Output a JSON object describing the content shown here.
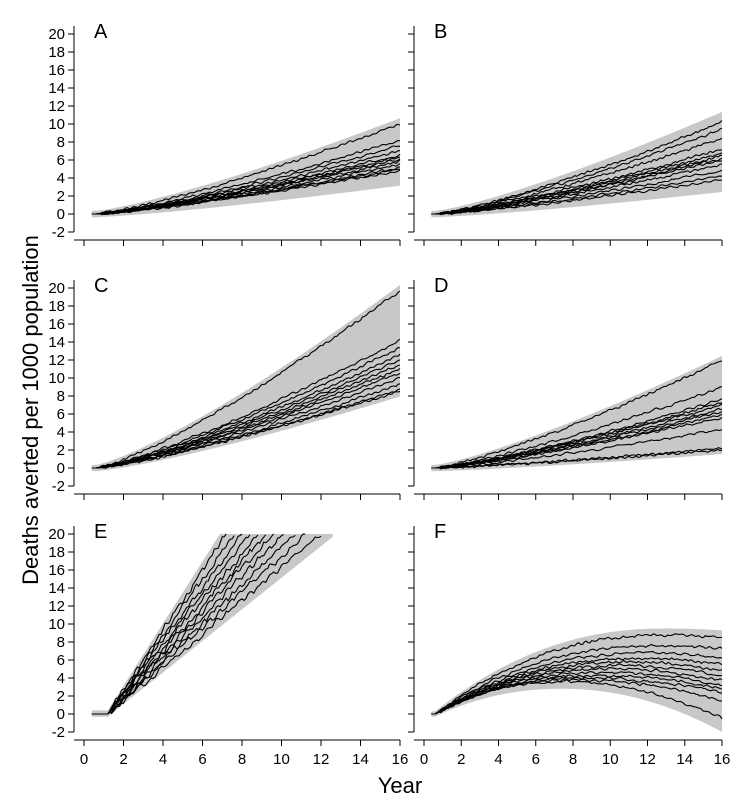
{
  "figure": {
    "ylabel": "Deaths averted per 1000 population",
    "xlabel": "Year"
  },
  "colors": {
    "band": "#c8c8c8",
    "line": "#000000",
    "axis": "#000000"
  },
  "chart_data": [
    {
      "panel": "A",
      "type": "line",
      "xlim": [
        0,
        16
      ],
      "ylim": [
        -2,
        20
      ],
      "xticks": [
        0,
        2,
        4,
        6,
        8,
        10,
        12,
        14,
        16
      ],
      "yticks": [
        -2,
        0,
        2,
        4,
        6,
        8,
        10,
        12,
        14,
        16,
        18,
        20
      ],
      "show_xtick_labels": false,
      "show_ytick_labels": true,
      "endpoints": [
        10,
        8.2,
        7.6,
        7.0,
        6.6,
        6.3,
        6.1,
        5.9,
        5.5,
        5.2,
        5.0,
        4.8
      ],
      "band": {
        "upper_end": 10.3,
        "lower_end": 3.5
      },
      "series_desc": "cumulative deaths averted vs year, multiple simulation runs"
    },
    {
      "panel": "B",
      "type": "line",
      "xlim": [
        0,
        16
      ],
      "ylim": [
        -2,
        20
      ],
      "xticks": [
        0,
        2,
        4,
        6,
        8,
        10,
        12,
        14,
        16
      ],
      "yticks": [
        -2,
        0,
        2,
        4,
        6,
        8,
        10,
        12,
        14,
        16,
        18,
        20
      ],
      "show_xtick_labels": false,
      "show_ytick_labels": false,
      "endpoints": [
        10.2,
        9.4,
        8.4,
        7.2,
        6.8,
        6.5,
        6.2,
        6.0,
        5.5,
        4.8,
        4.2,
        3.8
      ],
      "band": {
        "upper_end": 11.0,
        "lower_end": 2.8
      }
    },
    {
      "panel": "C",
      "type": "line",
      "xlim": [
        0,
        16
      ],
      "ylim": [
        -2,
        20
      ],
      "xticks": [
        0,
        2,
        4,
        6,
        8,
        10,
        12,
        14,
        16
      ],
      "yticks": [
        -2,
        0,
        2,
        4,
        6,
        8,
        10,
        12,
        14,
        16,
        18,
        20
      ],
      "show_xtick_labels": false,
      "show_ytick_labels": true,
      "endpoints": [
        19.7,
        14.2,
        13.4,
        12.6,
        12.0,
        11.5,
        11.0,
        10.6,
        10.0,
        9.3,
        8.8,
        8.6
      ],
      "band": {
        "upper_end": 20.0,
        "lower_end": 8.3
      }
    },
    {
      "panel": "D",
      "type": "line",
      "xlim": [
        0,
        16
      ],
      "ylim": [
        -2,
        20
      ],
      "xticks": [
        0,
        2,
        4,
        6,
        8,
        10,
        12,
        14,
        16
      ],
      "yticks": [
        -2,
        0,
        2,
        4,
        6,
        8,
        10,
        12,
        14,
        16,
        18,
        20
      ],
      "show_xtick_labels": false,
      "show_ytick_labels": false,
      "endpoints": [
        11.9,
        9.0,
        7.6,
        7.3,
        7.0,
        6.6,
        6.3,
        5.9,
        5.6,
        4.3,
        2.2,
        2.0
      ],
      "band": {
        "upper_end": 12.1,
        "lower_end": 1.9
      }
    },
    {
      "panel": "E",
      "type": "line",
      "xlim": [
        0,
        16
      ],
      "ylim": [
        -2,
        20
      ],
      "xticks": [
        0,
        2,
        4,
        6,
        8,
        10,
        12,
        14,
        16
      ],
      "xtick_labels": [
        "0",
        "2",
        "4",
        "6",
        "8",
        "10",
        "12",
        "14",
        "16"
      ],
      "yticks": [
        -2,
        0,
        2,
        4,
        6,
        8,
        10,
        12,
        14,
        16,
        18,
        20
      ],
      "show_xtick_labels": true,
      "show_ytick_labels": true,
      "cap_years": [
        7.2,
        7.6,
        8.0,
        8.4,
        8.8,
        9.2,
        9.6,
        10.1,
        10.7,
        11.2,
        12.0
      ],
      "cap_value": 20,
      "band": {
        "upper_cap_year": 7.0,
        "lower_cap_year": 12.6
      }
    },
    {
      "panel": "F",
      "type": "line",
      "xlim": [
        0,
        16
      ],
      "ylim": [
        -2,
        20
      ],
      "xticks": [
        0,
        2,
        4,
        6,
        8,
        10,
        12,
        14,
        16
      ],
      "xtick_labels": [
        "0",
        "2",
        "4",
        "6",
        "8",
        "10",
        "12",
        "14",
        "16"
      ],
      "yticks": [
        -2,
        0,
        2,
        4,
        6,
        8,
        10,
        12,
        14,
        16,
        18,
        20
      ],
      "show_xtick_labels": true,
      "show_ytick_labels": false,
      "peaks": [
        [
          13,
          8.8
        ],
        [
          12.5,
          7.6
        ],
        [
          12,
          6.8
        ],
        [
          11.5,
          6.2
        ],
        [
          11,
          5.8
        ],
        [
          10.5,
          5.4
        ],
        [
          10,
          5.0
        ],
        [
          9.5,
          4.6
        ],
        [
          9,
          4.3
        ],
        [
          8.5,
          4.0
        ],
        [
          8,
          3.8
        ],
        [
          7.5,
          3.6
        ]
      ],
      "endpoints": [
        8.5,
        7.3,
        6.2,
        5.5,
        4.8,
        4.2,
        3.7,
        3.2,
        2.8,
        2.4,
        1.5,
        -0.5
      ],
      "band": {
        "upper_end": 9.0,
        "lower_end": -1.7
      }
    }
  ]
}
